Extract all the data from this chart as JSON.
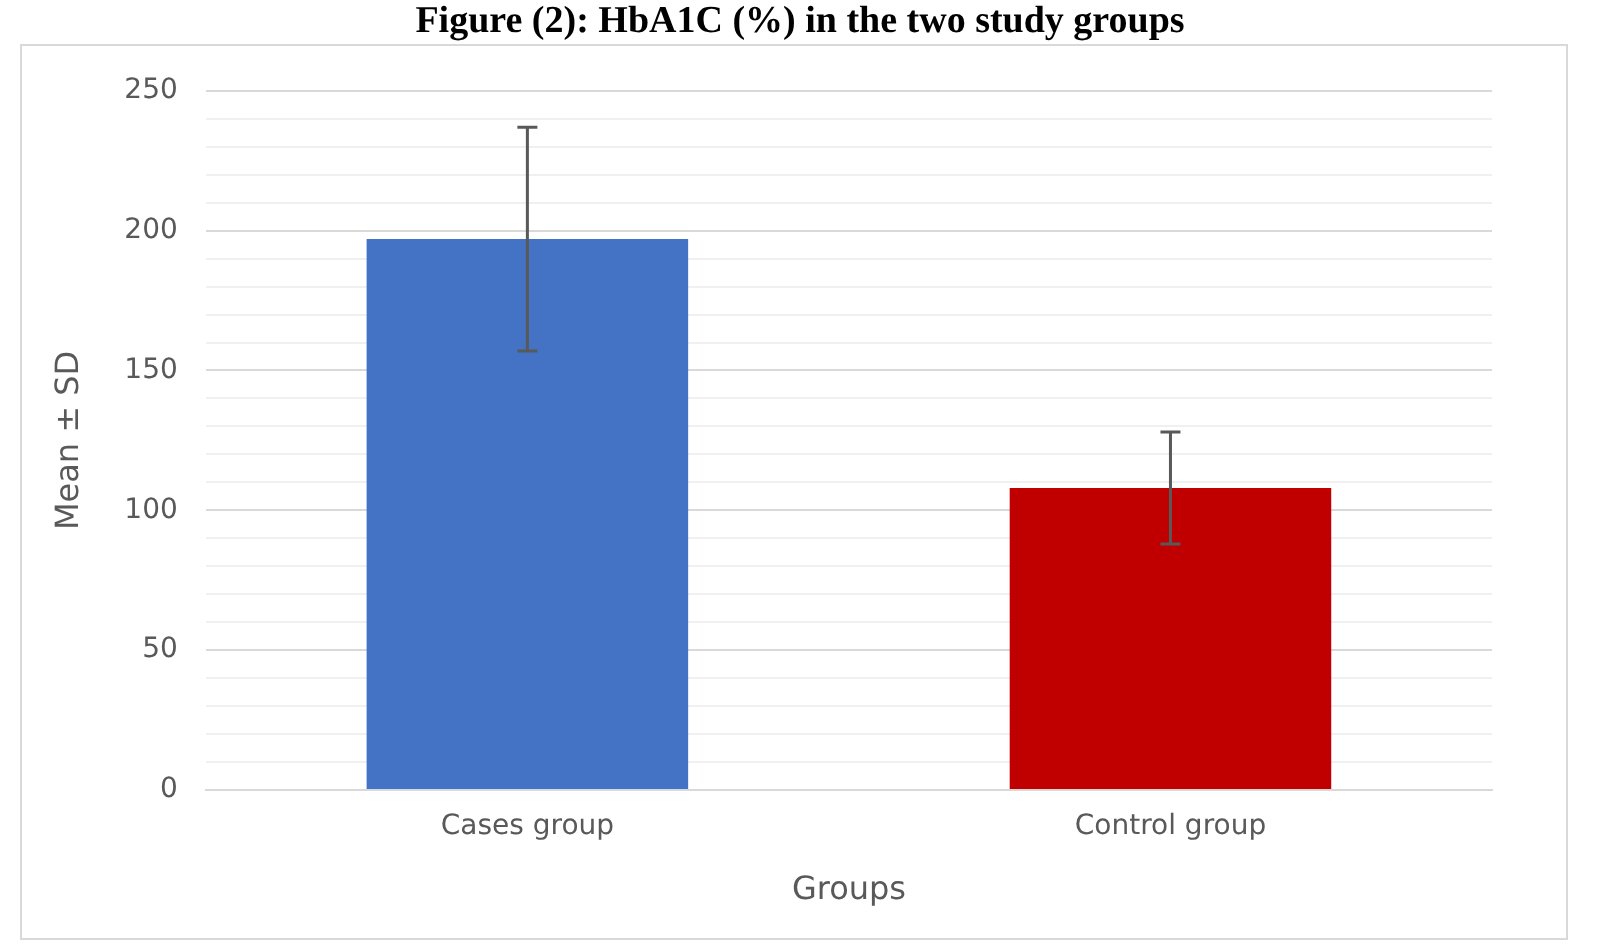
{
  "chart_data": {
    "type": "bar",
    "title": "Figure (2): HbA1C (%) in the two study groups",
    "xlabel": "Groups",
    "ylabel": "Mean ± SD",
    "categories": [
      "Cases group",
      "Control group"
    ],
    "colors": [
      "#4472c4",
      "#c00000"
    ],
    "values": [
      197,
      108
    ],
    "errors": [
      40,
      20
    ],
    "ylim": [
      0,
      250
    ],
    "yticks": [
      0,
      {
        "value": 10,
        "label": null
      },
      {
        "value": 20,
        "label": null
      },
      {
        "value": 30,
        "label": null
      },
      {
        "value": 40,
        "label": null
      },
      50,
      {
        "value": 60,
        "label": null
      },
      {
        "value": 70,
        "label": null
      },
      {
        "value": 80,
        "label": null
      },
      {
        "value": 90,
        "label": null
      },
      100,
      {
        "value": 110,
        "label": null
      },
      {
        "value": 120,
        "label": null
      },
      {
        "value": 130,
        "label": null
      },
      {
        "value": 140,
        "label": null
      },
      150,
      {
        "value": 160,
        "label": null
      },
      {
        "value": 170,
        "label": null
      },
      {
        "value": 180,
        "label": null
      },
      {
        "value": 190,
        "label": null
      },
      200,
      {
        "value": 210,
        "label": null
      },
      {
        "value": 220,
        "label": null
      },
      {
        "value": 230,
        "label": null
      },
      {
        "value": 240,
        "label": null
      },
      250
    ],
    "grid": "y",
    "legend": false
  }
}
